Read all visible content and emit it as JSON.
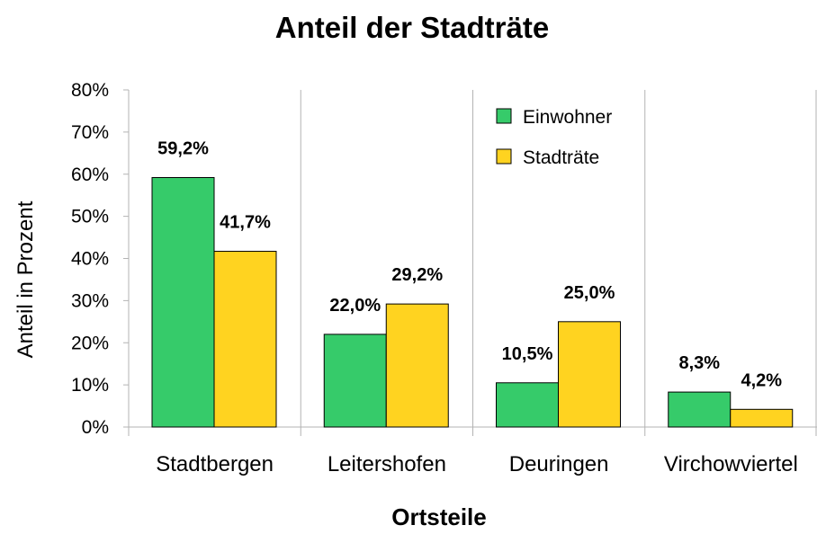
{
  "chart_data": {
    "type": "bar",
    "title": "Anteil der Stadträte",
    "xlabel": "Ortsteile",
    "ylabel": "Anteil in Prozent",
    "categories": [
      "Stadtbergen",
      "Leitershofen",
      "Deuringen",
      "Virchowviertel"
    ],
    "series": [
      {
        "name": "Einwohner",
        "color": "#36cb6a",
        "values": [
          59.2,
          22.0,
          10.5,
          8.3
        ],
        "labels": [
          "59,2%",
          "22,0%",
          "10,5%",
          "8,3%"
        ]
      },
      {
        "name": "Stadträte",
        "color": "#ffd320",
        "values": [
          41.7,
          29.2,
          25.0,
          4.2
        ],
        "labels": [
          "41,7%",
          "29,2%",
          "25,0%",
          "4,2%"
        ]
      }
    ],
    "ylim": [
      0,
      80
    ],
    "yticks": [
      0,
      10,
      20,
      30,
      40,
      50,
      60,
      70,
      80
    ],
    "ytick_labels": [
      "0%",
      "10%",
      "20%",
      "30%",
      "40%",
      "50%",
      "60%",
      "70%",
      "80%"
    ],
    "grid": "vertical",
    "legend_position": "top-right"
  }
}
